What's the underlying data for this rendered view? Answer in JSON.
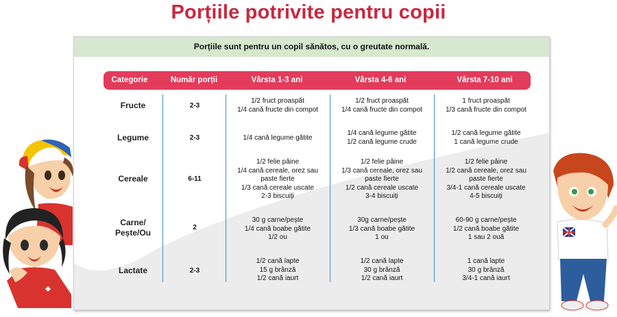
{
  "title": "Porțiile potrivite pentru copii",
  "subtitle": "Porțiile sunt pentru un copil sănătos, cu o greutate normală.",
  "headers": [
    "Categorie",
    "Număr porții",
    "Vârsta 1-3 ani",
    "Vârsta 4-6 ani",
    "Vârsta 7-10 ani"
  ],
  "rows": [
    {
      "category": "Fructe",
      "portions": "2-3",
      "age_1_3": "1/2 fruct proaspăt\n1/4 cană fructe din compot",
      "age_4_6": "1/2 fruct proaspăt\n1/4 cană fructe din compot",
      "age_7_10": "1 fruct proaspăt\n1/3 cană fructe din compot"
    },
    {
      "category": "Legume",
      "portions": "2-3",
      "age_1_3": "1/4 cană legume gătite",
      "age_4_6": "1/4 cană legume gătite\n1/2 cană legume crude",
      "age_7_10": "1/2 cană legume gătite\n1 cană legume crude"
    },
    {
      "category": "Cereale",
      "portions": "6-11",
      "age_1_3": "1/2 felie pâine\n1/4 cană cereale, orez sau\npaste fierte\n1/3 cană cereale uscate\n2-3 biscuiți",
      "age_4_6": "1/2 felie pâine\n1/3 cană cereale, orez sau\npaste fierte\n1/2 cană cereale uscate\n3-4 biscuiți",
      "age_7_10": "1/2 felie pâine\n1/2 cană cereale, orez sau\npaste fierte\n3/4-1 cană cereale uscate\n4-5 biscuiți"
    },
    {
      "category": "Carne/\nPește/Ou",
      "portions": "2",
      "age_1_3": "30 g carne/pește\n1/4 cană boabe gătite\n1/2 ou",
      "age_4_6": "30g carne/pește\n1/3 cană boabe gătite\n1 ou",
      "age_7_10": "60-90 g carne/pește\n1/2 cană boabe gătite\n1 sau 2 ouă"
    },
    {
      "category": "Lactate",
      "portions": "2-3",
      "age_1_3": "1/2 cană lapte\n15 g brânză\n1/2 cană iaurt",
      "age_4_6": "1/2 cană lapte\n30 g brânză\n1/2 cană iaurt",
      "age_7_10": "1 cană lapte\n30 g brânză\n3/4-1 cană iaurt"
    }
  ],
  "colors": {
    "title": "#c8283f",
    "header_bg": "#e23b5c",
    "subtitle_bg": "#d6e8cf",
    "divider": "#3a8fd0"
  },
  "illustrations": [
    "boy-cartoon",
    "girl-with-cap-cartoon",
    "girl-with-braids-cartoon"
  ]
}
